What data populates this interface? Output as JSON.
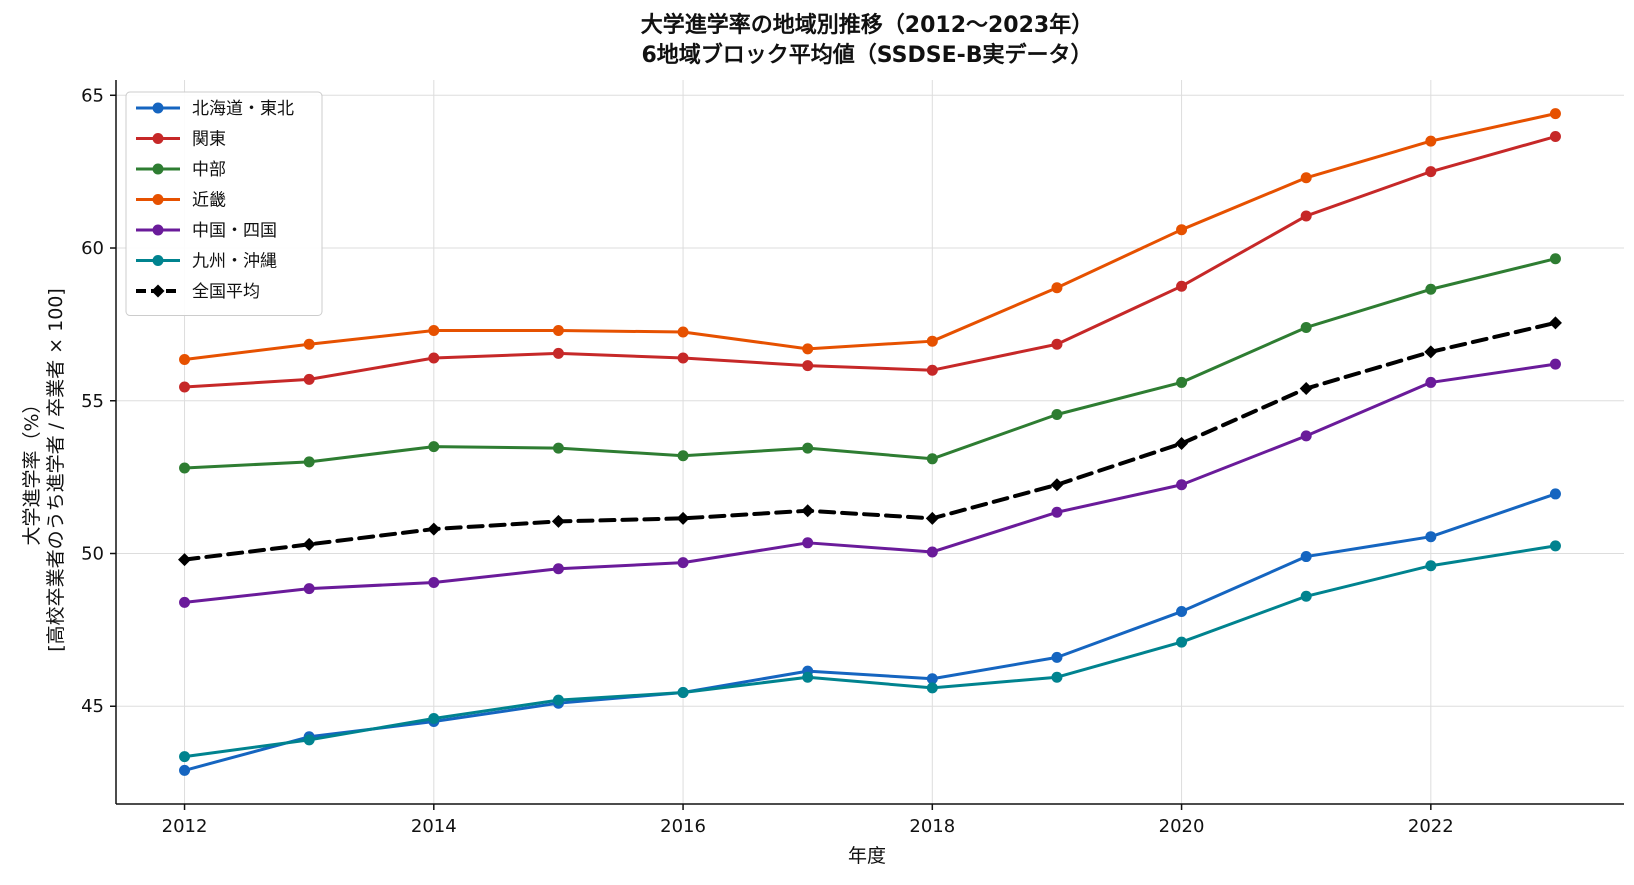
{
  "chart_data": {
    "type": "line",
    "title": "大学進学率の地域別推移（2012〜2023年）",
    "subtitle": "6地域ブロック平均値（SSDSE-B実データ）",
    "xlabel": "年度",
    "ylabel_line1": "大学進学率（%）",
    "ylabel_line2": "[高校卒業者のうち進学者 / 卒業者 × 100]",
    "x": [
      2012,
      2013,
      2014,
      2015,
      2016,
      2017,
      2018,
      2019,
      2020,
      2021,
      2022,
      2023
    ],
    "xlim": [
      2011.45,
      2023.55
    ],
    "ylim": [
      41.8,
      65.5
    ],
    "xticks": [
      2012,
      2014,
      2016,
      2018,
      2020,
      2022
    ],
    "yticks": [
      45,
      50,
      55,
      60,
      65
    ],
    "grid": true,
    "legend_position": "top-left",
    "series": [
      {
        "name": "北海道・東北",
        "color": "#1565c0",
        "marker": "circle",
        "dashed": false,
        "values": [
          42.9,
          44.0,
          44.5,
          45.1,
          45.45,
          46.15,
          45.9,
          46.6,
          48.1,
          49.9,
          50.55,
          51.95
        ]
      },
      {
        "name": "関東",
        "color": "#c62828",
        "marker": "circle",
        "dashed": false,
        "values": [
          55.45,
          55.7,
          56.4,
          56.55,
          56.4,
          56.15,
          56.0,
          56.85,
          58.75,
          61.05,
          62.5,
          63.65
        ]
      },
      {
        "name": "中部",
        "color": "#2e7d32",
        "marker": "circle",
        "dashed": false,
        "values": [
          52.8,
          53.0,
          53.5,
          53.45,
          53.2,
          53.45,
          53.1,
          54.55,
          55.6,
          57.4,
          58.65,
          59.65
        ]
      },
      {
        "name": "近畿",
        "color": "#e65100",
        "marker": "circle",
        "dashed": false,
        "values": [
          56.35,
          56.85,
          57.3,
          57.3,
          57.25,
          56.7,
          56.95,
          58.7,
          60.6,
          62.3,
          63.5,
          64.4
        ]
      },
      {
        "name": "中国・四国",
        "color": "#6a1b9a",
        "marker": "circle",
        "dashed": false,
        "values": [
          48.4,
          48.85,
          49.05,
          49.5,
          49.7,
          50.35,
          50.05,
          51.35,
          52.25,
          53.85,
          55.6,
          56.2
        ]
      },
      {
        "name": "九州・沖縄",
        "color": "#00838f",
        "marker": "circle",
        "dashed": false,
        "values": [
          43.35,
          43.9,
          44.6,
          45.2,
          45.45,
          45.95,
          45.6,
          45.95,
          47.1,
          48.6,
          49.6,
          50.25
        ]
      },
      {
        "name": "全国平均",
        "color": "#000000",
        "marker": "diamond",
        "dashed": true,
        "values": [
          49.8,
          50.3,
          50.8,
          51.05,
          51.15,
          51.4,
          51.15,
          52.25,
          53.6,
          55.4,
          56.6,
          57.55
        ]
      }
    ]
  }
}
